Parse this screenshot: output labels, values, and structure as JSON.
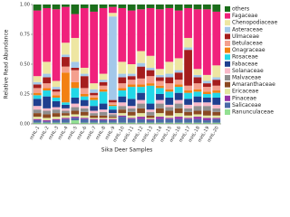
{
  "chart_data": {
    "type": "stacked_bar",
    "y_label": "Relative Read Abundance",
    "x_label": "Sika Deer Samples",
    "categories": [
      "mHL-1",
      "mHL-2",
      "mHL-3",
      "mHL-4",
      "mHL-5",
      "mHL-6",
      "mHL-7",
      "mHL-8",
      "mHL-9",
      "mHL-10",
      "mHL-11",
      "mHL-12",
      "mHL-13",
      "mHL-14",
      "mHL-15",
      "mHL-16",
      "mHL-17",
      "mHL-18",
      "mHL-19",
      "mHL-20"
    ],
    "ylim": [
      0,
      1
    ],
    "yticks": [
      {
        "value": 0,
        "label": "0.00"
      },
      {
        "value": 0.25,
        "label": "0.25"
      },
      {
        "value": 0.5,
        "label": "0.50"
      },
      {
        "value": 0.75,
        "label": "0.75"
      },
      {
        "value": 1,
        "label": "1.00"
      }
    ],
    "series": [
      {
        "name": "others",
        "color": "#1b6e1b",
        "values": [
          0.05,
          0.03,
          0.04,
          0.02,
          0.08,
          0.03,
          0.06,
          0.03,
          0.02,
          0.03,
          0.05,
          0.04,
          0.03,
          0.04,
          0.03,
          0.05,
          0.03,
          0.04,
          0.04,
          0.06
        ]
      },
      {
        "name": "Fagaceae",
        "color": "#f0217c",
        "values": [
          0.55,
          0.45,
          0.6,
          0.3,
          0.2,
          0.5,
          0.6,
          0.55,
          0.05,
          0.45,
          0.45,
          0.35,
          0.4,
          0.5,
          0.45,
          0.4,
          0.25,
          0.5,
          0.55,
          0.45
        ]
      },
      {
        "name": "Chenopodiaceae",
        "color": "#eee6a2",
        "values": [
          0.05,
          0.1,
          0.05,
          0.1,
          0.2,
          0.05,
          0.05,
          0.05,
          0.03,
          0.1,
          0.08,
          0.1,
          0.1,
          0.05,
          0.1,
          0.1,
          0.08,
          0.05,
          0.05,
          0.1
        ]
      },
      {
        "name": "Asteraceae",
        "color": "#a3c8ea",
        "values": [
          0.02,
          0.03,
          0.02,
          0.02,
          0.05,
          0.02,
          0.03,
          0.02,
          0.7,
          0.03,
          0.02,
          0.03,
          0.02,
          0.02,
          0.03,
          0.02,
          0.02,
          0.02,
          0.02,
          0.02
        ]
      },
      {
        "name": "Ulmaceae",
        "color": "#a51d1d",
        "values": [
          0.03,
          0.05,
          0.02,
          0.08,
          0.02,
          0.1,
          0.02,
          0.03,
          0.02,
          0.05,
          0.03,
          0.1,
          0.05,
          0.03,
          0.05,
          0.06,
          0.3,
          0.05,
          0.03,
          0.05
        ]
      },
      {
        "name": "Betulaceae",
        "color": "#f4a08e",
        "values": [
          0.04,
          0.04,
          0.03,
          0.05,
          0.1,
          0.05,
          0.02,
          0.03,
          0.02,
          0.04,
          0.04,
          0.05,
          0.06,
          0.04,
          0.05,
          0.04,
          0.04,
          0.05,
          0.04,
          0.04
        ]
      },
      {
        "name": "Onagraceae",
        "color": "#f28012",
        "values": [
          0.02,
          0.02,
          0.02,
          0.25,
          0.05,
          0.02,
          0.02,
          0.02,
          0.01,
          0.02,
          0.02,
          0.02,
          0.02,
          0.02,
          0.02,
          0.02,
          0.02,
          0.02,
          0.02,
          0.02
        ]
      },
      {
        "name": "Rosaceae",
        "color": "#22d8e8",
        "values": [
          0.03,
          0.05,
          0.03,
          0.02,
          0.08,
          0.03,
          0.05,
          0.1,
          0.03,
          0.05,
          0.1,
          0.05,
          0.15,
          0.05,
          0.05,
          0.05,
          0.05,
          0.04,
          0.03,
          0.04
        ]
      },
      {
        "name": "Fabaceae",
        "color": "#1f3f8f",
        "values": [
          0.06,
          0.1,
          0.05,
          0.03,
          0.05,
          0.05,
          0.04,
          0.05,
          0.03,
          0.05,
          0.06,
          0.06,
          0.05,
          0.05,
          0.06,
          0.06,
          0.05,
          0.05,
          0.04,
          0.06
        ]
      },
      {
        "name": "Solanaceae",
        "color": "#f8b9c9",
        "values": [
          0.03,
          0.02,
          0.02,
          0.02,
          0.03,
          0.02,
          0.02,
          0.02,
          0.01,
          0.03,
          0.02,
          0.03,
          0.02,
          0.03,
          0.02,
          0.03,
          0.03,
          0.03,
          0.03,
          0.03
        ]
      },
      {
        "name": "Malvaceae",
        "color": "#8f8f8f",
        "values": [
          0.03,
          0.03,
          0.03,
          0.02,
          0.03,
          0.03,
          0.02,
          0.03,
          0.02,
          0.03,
          0.03,
          0.04,
          0.03,
          0.04,
          0.03,
          0.04,
          0.03,
          0.04,
          0.04,
          0.03
        ]
      },
      {
        "name": "Amaranthaceae",
        "color": "#8b4a22",
        "values": [
          0.03,
          0.03,
          0.03,
          0.02,
          0.03,
          0.03,
          0.02,
          0.02,
          0.01,
          0.03,
          0.03,
          0.04,
          0.02,
          0.04,
          0.04,
          0.04,
          0.03,
          0.03,
          0.04,
          0.03
        ]
      },
      {
        "name": "Ericaceae",
        "color": "#e2e6a0",
        "values": [
          0.02,
          0.02,
          0.02,
          0.02,
          0.02,
          0.02,
          0.01,
          0.01,
          0.01,
          0.02,
          0.02,
          0.03,
          0.01,
          0.03,
          0.02,
          0.03,
          0.02,
          0.02,
          0.02,
          0.02
        ]
      },
      {
        "name": "Pinaceae",
        "color": "#9632a6",
        "values": [
          0.01,
          0.01,
          0.01,
          0.01,
          0.01,
          0.01,
          0.01,
          0.01,
          0.01,
          0.01,
          0.01,
          0.02,
          0.01,
          0.02,
          0.01,
          0.02,
          0.01,
          0.02,
          0.02,
          0.01
        ]
      },
      {
        "name": "Salicaceae",
        "color": "#4a6aa8",
        "values": [
          0.02,
          0.01,
          0.02,
          0.03,
          0.02,
          0.03,
          0.02,
          0.02,
          0.02,
          0.05,
          0.03,
          0.03,
          0.02,
          0.03,
          0.03,
          0.03,
          0.03,
          0.03,
          0.02,
          0.03
        ]
      },
      {
        "name": "Ranunculaceae",
        "color": "#92e092",
        "values": [
          0.01,
          0.01,
          0.01,
          0.01,
          0.03,
          0.01,
          0.01,
          0.01,
          0.01,
          0.01,
          0.01,
          0.01,
          0.01,
          0.01,
          0.01,
          0.01,
          0.01,
          0.01,
          0.01,
          0.01
        ]
      }
    ]
  }
}
